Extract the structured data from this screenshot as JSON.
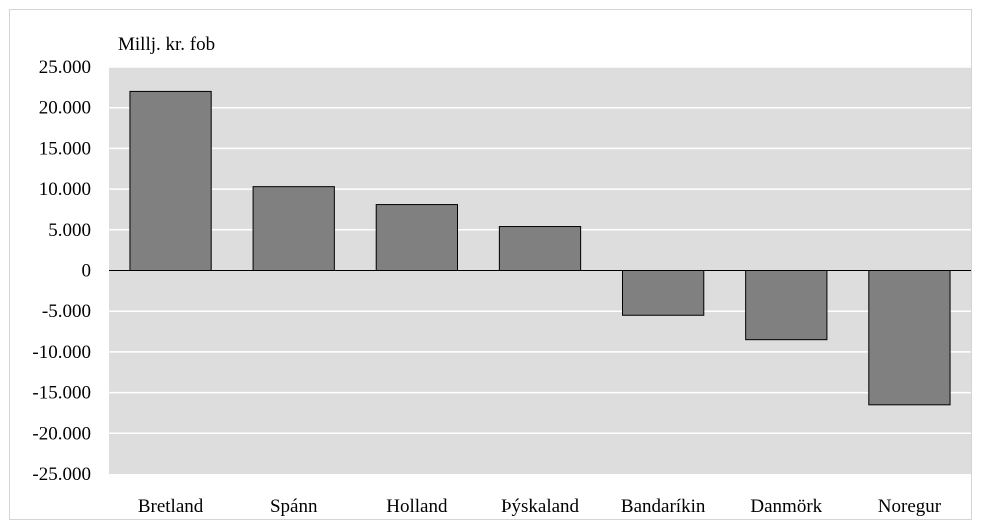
{
  "chart_data": {
    "type": "bar",
    "ylabel": "Millj. kr. fob",
    "categories": [
      "Bretland",
      "Spánn",
      "Holland",
      "Þýskaland",
      "Bandaríkin",
      "Danmörk",
      "Noregur"
    ],
    "values": [
      22000,
      10300,
      8100,
      5400,
      -5500,
      -8500,
      -16500
    ],
    "ylim": [
      -25000,
      25000
    ],
    "yticks": [
      25000,
      20000,
      15000,
      10000,
      5000,
      0,
      -5000,
      -10000,
      -15000,
      -20000,
      -25000
    ],
    "ytick_labels": [
      "25.000",
      "20.000",
      "15.000",
      "10.000",
      "5.000",
      "0",
      "-5.000",
      "-10.000",
      "-15.000",
      "-20.000",
      "-25.000"
    ],
    "grid": true,
    "legend": "none",
    "colors": {
      "bar_fill": "#808080",
      "bar_stroke": "#000000",
      "plot_background": "#dddddd",
      "gridline": "#ffffff",
      "zero_line": "#000000"
    }
  }
}
